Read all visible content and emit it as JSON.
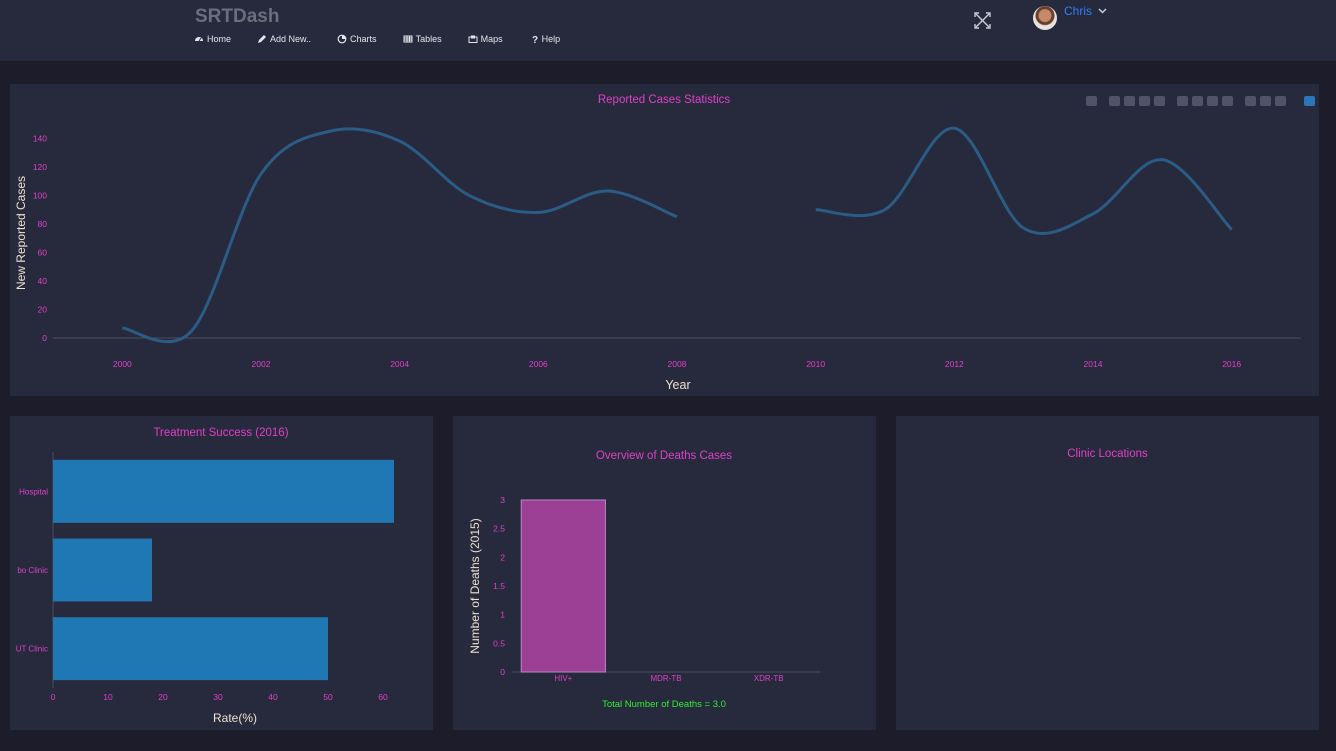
{
  "header": {
    "brand": "SRTDash",
    "nav": [
      {
        "label": "Home",
        "icon": "dashboard-icon"
      },
      {
        "label": "Add New..",
        "icon": "pencil-icon"
      },
      {
        "label": "Charts",
        "icon": "pie-chart-icon"
      },
      {
        "label": "Tables",
        "icon": "table-icon"
      },
      {
        "label": "Maps",
        "icon": "map-icon"
      },
      {
        "label": "Help",
        "icon": "question-icon"
      }
    ],
    "user": "Chris"
  },
  "cards": {
    "map_title": "Clinic Locations",
    "deaths_total": "Total Number of Deaths = 3.0"
  },
  "colors": {
    "accent": "#e040c8",
    "line": "#2b5c86",
    "bar": "#1f77b4",
    "deaths_bar": "#9b4094",
    "total": "#33ee33"
  },
  "chart_data": [
    {
      "type": "line",
      "title": "Reported Cases Statistics",
      "xlabel": "Year",
      "ylabel": "New Reported Cases",
      "x": [
        2000,
        2001,
        2002,
        2003,
        2004,
        2005,
        2006,
        2007,
        2008,
        2009,
        2010,
        2011,
        2012,
        2013,
        2014,
        2015,
        2016
      ],
      "y": [
        7,
        5,
        115,
        145,
        138,
        100,
        88,
        103,
        85,
        null,
        90,
        90,
        147,
        77,
        87,
        125,
        76
      ],
      "yticks": [
        0,
        20,
        40,
        60,
        80,
        100,
        120,
        140
      ],
      "xticks": [
        2000,
        2002,
        2004,
        2006,
        2008,
        2010,
        2012,
        2014,
        2016
      ],
      "xlim": [
        1999.0,
        2017.0
      ],
      "ylim": [
        0,
        150
      ]
    },
    {
      "type": "bar",
      "orientation": "horizontal",
      "title": "Treatment Success (2016)",
      "xlabel": "Rate(%)",
      "categories": [
        "Hospital",
        "bo Clinic",
        "UT Clinic"
      ],
      "values": [
        62,
        18,
        50
      ],
      "xticks": [
        0,
        10,
        20,
        30,
        40,
        50,
        60
      ],
      "xlim": [
        0,
        64
      ]
    },
    {
      "type": "bar",
      "title": "Overview of Deaths Cases",
      "ylabel": "Number of Deaths (2015)",
      "categories": [
        "HIV+",
        "MDR-TB",
        "XDR-TB"
      ],
      "values": [
        3,
        0,
        0
      ],
      "yticks": [
        0,
        0.5,
        1,
        1.5,
        2,
        2.5,
        3
      ],
      "ylim": [
        0,
        3
      ]
    }
  ]
}
